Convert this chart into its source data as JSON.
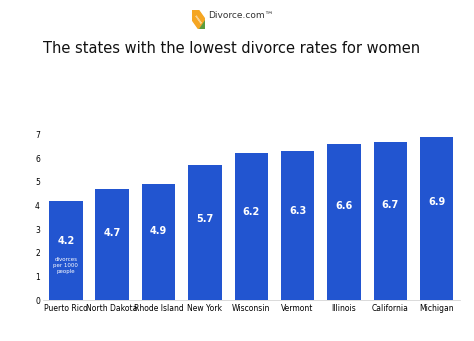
{
  "categories": [
    "Puerto Rico",
    "North Dakota",
    "Rhode Island",
    "New York",
    "Wisconsin",
    "Vermont",
    "Illinois",
    "California",
    "Michigan"
  ],
  "values": [
    4.2,
    4.7,
    4.9,
    5.7,
    6.2,
    6.3,
    6.6,
    6.7,
    6.9
  ],
  "bar_color": "#2255d0",
  "title": "The states with the lowest divorce rates for women",
  "title_fontsize": 10.5,
  "ylim": [
    0,
    7.5
  ],
  "yticks": [
    0,
    1,
    2,
    3,
    4,
    5,
    6,
    7
  ],
  "bar_labels": [
    "4.2",
    "4.7",
    "4.9",
    "5.7",
    "6.2",
    "6.3",
    "6.6",
    "6.7",
    "6.9"
  ],
  "first_bar_sub": "divorces\nper 1000\npeople",
  "label_color": "#ffffff",
  "background_color": "#ffffff",
  "tick_fontsize": 5.5,
  "label_fontsize": 7.0,
  "sublabel_fontsize": 4.0,
  "logo_text": "Divorce.com™",
  "logo_fontsize": 6.5,
  "bar_width": 0.72
}
